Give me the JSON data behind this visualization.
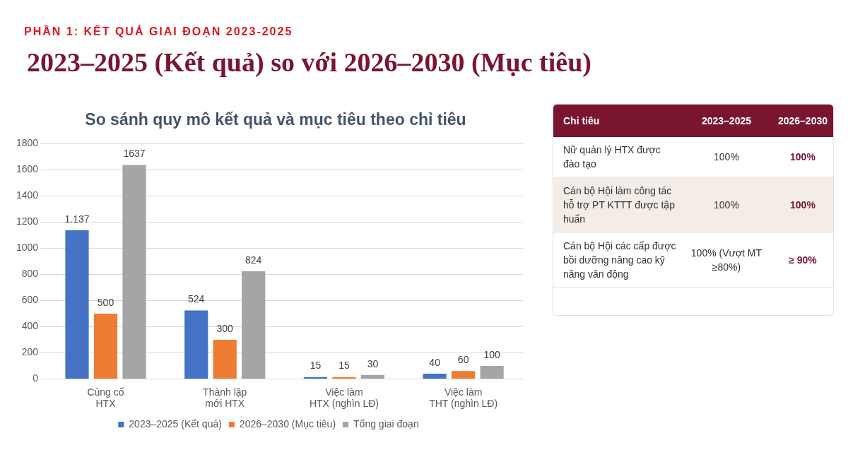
{
  "chart_data": [
    {
      "type": "bar",
      "title": "So sánh quy mô kết quả và mục tiêu theo chỉ tiêu",
      "annotations": [
        "PHẦN 1: KẾT QUẢ GIAI ĐOẠN 2023-2025",
        "2023–2025 (Kết quả) so với 2026–2030 (Mục tiêu)"
      ],
      "categories": [
        "Củng cố\nHTX",
        "Thành lập\nmới HTX",
        "Việc làm\nHTX (nghìn LĐ)",
        "Việc làm\nTHT (nghìn LĐ)"
      ],
      "series": [
        {
          "name": "2023–2025 (Kết quả)",
          "color": "#4472c4",
          "values": [
            1137,
            524,
            15,
            40
          ],
          "value_labels": [
            "1.137",
            "524",
            "15",
            "40"
          ]
        },
        {
          "name": "2026–2030 (Mục tiêu)",
          "color": "#ed7d31",
          "values": [
            500,
            300,
            15,
            60
          ],
          "value_labels": [
            "500",
            "300",
            "15",
            "60"
          ]
        },
        {
          "name": "Tổng giai đoạn",
          "color": "#a5a5a5",
          "values": [
            1637,
            824,
            30,
            100
          ],
          "value_labels": [
            "1637",
            "824",
            "30",
            "100"
          ]
        }
      ],
      "ylim": [
        0,
        1800
      ],
      "yticks": [
        0,
        200,
        400,
        600,
        800,
        1000,
        1200,
        1400,
        1600,
        1800
      ],
      "grid": "y",
      "legend": "bottom"
    },
    {
      "type": "other",
      "categories": [
        "Chỉ tiêu",
        "2023–2025",
        "2026–2030"
      ],
      "y_categories": [
        "Nữ quản lý HTX được đào tạo",
        "Cán bộ Hội làm công tác hỗ trợ PT KTTT được tập huấn",
        "Cán bộ Hội các cấp được bồi dưỡng nâng cao kỹ năng vân động"
      ],
      "cell_labels": [
        [
          "100%",
          "100%"
        ],
        [
          "100%",
          "100%"
        ],
        [
          "100% (Vượt MT ≥80%)",
          "≥ 90%"
        ]
      ]
    }
  ]
}
